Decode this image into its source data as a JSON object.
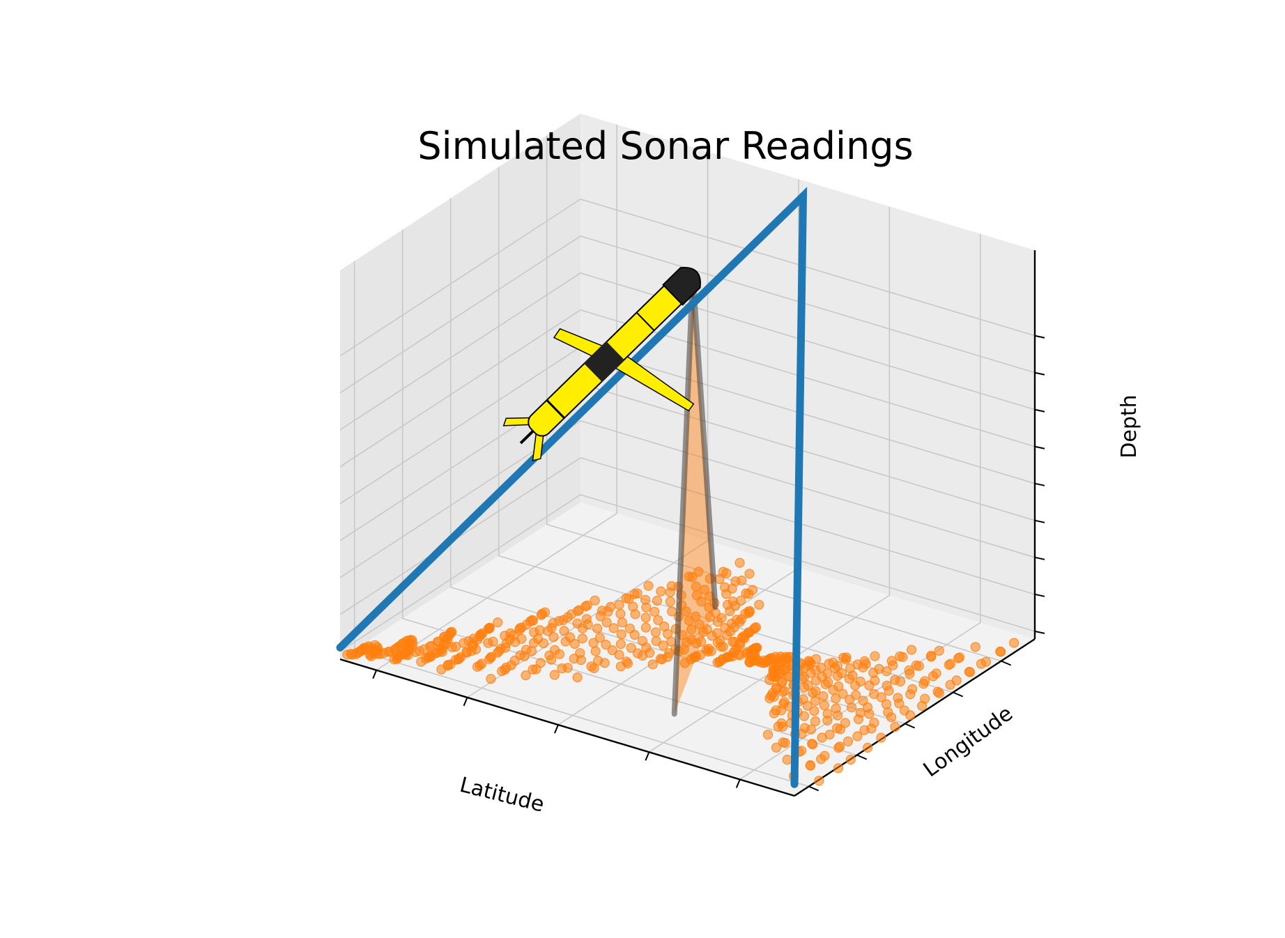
{
  "chart_data": {
    "type": "scatter",
    "projection": "3d",
    "title": "Simulated Sonar Readings",
    "xlabel": "Latitude",
    "ylabel": "Longitude",
    "zlabel": "Depth",
    "tick_labels_visible": false,
    "grid": true,
    "xlim": [
      0,
      10
    ],
    "ylim": [
      0,
      10
    ],
    "zlim": [
      0,
      10
    ],
    "series": [
      {
        "kind": "line",
        "color": "#1f77b4",
        "x": [
          0,
          4.9,
          10
        ],
        "y": [
          0,
          10,
          0
        ],
        "z": [
          0.3,
          9.6,
          0.3
        ]
      },
      {
        "kind": "scatter",
        "color": "#ff7f0e",
        "x": [
          0.0,
          0.22,
          0.44,
          0.67,
          0.89,
          1.11,
          1.33,
          1.56,
          1.78,
          2.0,
          2.22,
          2.44,
          2.67,
          2.89,
          3.11,
          3.33,
          3.56,
          3.78,
          4.0,
          4.22,
          4.44,
          4.67,
          4.89,
          5.11,
          5.33,
          5.56,
          5.78,
          6.0,
          6.22,
          6.44,
          6.67,
          6.89,
          7.11,
          7.33,
          7.56,
          7.78,
          8.0,
          8.22,
          8.44,
          8.67,
          8.89,
          9.11,
          9.33,
          9.56,
          9.78,
          10.0
        ],
        "y": [
          0.3,
          1.0,
          0.6,
          1.8,
          0.7,
          2.7,
          1.0,
          3.6,
          0.9,
          4.8,
          1.4,
          5.9,
          1.2,
          7.2,
          1.7,
          8.6,
          2.1,
          9.4,
          2.4,
          9.1,
          3.3,
          8.5,
          3.9,
          7.8,
          4.4,
          6.9,
          4.8,
          6.0,
          5.3,
          5.5,
          6.0,
          4.8,
          6.2,
          3.9,
          6.8,
          3.3,
          7.1,
          2.4,
          7.9,
          1.8,
          8.3,
          1.5,
          8.8,
          0.9,
          9.6,
          0.4
        ],
        "z": [
          0.0,
          0.0,
          0.0,
          0.0,
          0.0,
          0.0,
          0.0,
          0.0,
          0.0,
          0.0,
          0.0,
          0.0,
          0.0,
          0.0,
          0.0,
          0.0,
          0.0,
          0.0,
          0.0,
          0.0,
          0.0,
          0.0,
          0.0,
          0.0,
          0.0,
          0.0,
          0.0,
          0.0,
          0.0,
          0.0,
          0.0,
          0.0,
          0.0,
          0.0,
          0.0,
          0.0,
          0.0,
          0.0,
          0.0,
          0.0,
          0.0,
          0.0,
          0.0,
          0.0,
          0.0,
          0.0
        ]
      }
    ],
    "sonar_cone": {
      "color": "#ff7f0e",
      "edge_color": "#404040",
      "apex": [
        3.9,
        7.3,
        8.3
      ],
      "base_a": [
        4.45,
        7.2,
        0.0
      ],
      "base_b": [
        6.3,
        2.0,
        0.0
      ]
    },
    "glider": {
      "body_color": "#ffee00",
      "accent_color": "#222222",
      "icon": "underwater-glider-icon"
    }
  }
}
